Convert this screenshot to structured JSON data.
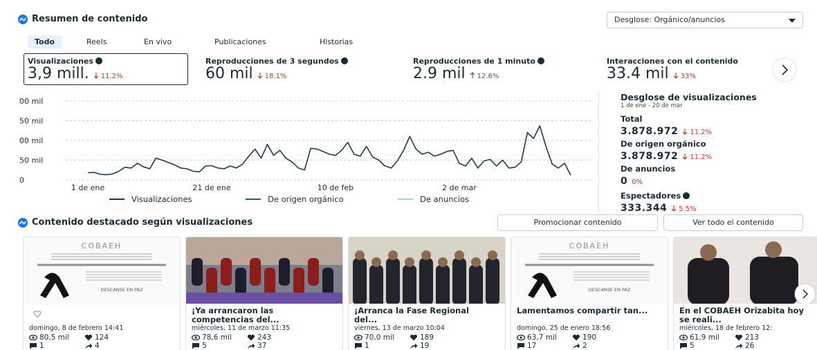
{
  "header": {
    "title": "Resumen de contenido",
    "breakdown_button": "Desglose: Orgánico/anuncios"
  },
  "tabs": [
    "Todo",
    "Reels",
    "En vivo",
    "Publicaciones",
    "Historias"
  ],
  "metrics": [
    {
      "label": "Visualizaciones",
      "value": "3,9 mill.",
      "change": "11.2%",
      "direction": "down"
    },
    {
      "label": "Reproducciones de 3 segundos",
      "value": "60 mil",
      "change": "18.1%",
      "direction": "down"
    },
    {
      "label": "Reproducciones de 1 minuto",
      "value": "2.9 mil",
      "change": "12.6%",
      "direction": "up"
    },
    {
      "label": "Interacciones con el contenido",
      "value": "33.4 mil",
      "change": "33%",
      "direction": "down"
    }
  ],
  "chart": {
    "type": "line",
    "categories": [
      "1 de ene",
      null,
      null,
      null,
      null,
      null,
      null,
      null,
      null,
      null,
      null,
      null,
      null,
      null,
      null,
      null,
      null,
      null,
      null,
      null,
      "21 de ene",
      null,
      null,
      null,
      null,
      null,
      null,
      null,
      null,
      null,
      null,
      null,
      null,
      null,
      null,
      null,
      null,
      null,
      null,
      null,
      "10 de feb",
      null,
      null,
      null,
      null,
      null,
      null,
      null,
      null,
      null,
      null,
      null,
      null,
      null,
      null,
      null,
      null,
      null,
      null,
      null,
      "2 de mar",
      null,
      null,
      null,
      null,
      null,
      null,
      null,
      null,
      null,
      null,
      null,
      null,
      null,
      null,
      null,
      null,
      null,
      null
    ],
    "series": [
      {
        "name": "Visualizaciones",
        "color": "#1f3a4d",
        "values": [
          18,
          19,
          14,
          13,
          15,
          22,
          32,
          30,
          42,
          33,
          28,
          55,
          50,
          44,
          38,
          30,
          28,
          22,
          20,
          35,
          36,
          30,
          28,
          35,
          30,
          40,
          60,
          78,
          55,
          90,
          62,
          75,
          55,
          45,
          30,
          25,
          80,
          78,
          72,
          65,
          62,
          75,
          95,
          65,
          60,
          85,
          58,
          50,
          35,
          30,
          48,
          75,
          110,
          78,
          65,
          70,
          60,
          65,
          72,
          75,
          42,
          35,
          55,
          30,
          48,
          52,
          35,
          50,
          30,
          32,
          45,
          120,
          105,
          137,
          85,
          40,
          30,
          42,
          12
        ]
      },
      {
        "name": "De origen orgánico",
        "color": "#2e5f7e"
      },
      {
        "name": "De anuncios",
        "color": "#a3d5ea"
      }
    ],
    "ylim": [
      0,
      200
    ],
    "yticks": [
      0,
      {
        "value": 50,
        "label": "50 mil"
      },
      {
        "value": 100,
        "label": "00 mil"
      },
      {
        "value": 150,
        "label": "50 mil"
      },
      {
        "value": 200,
        "label": "00 mil"
      }
    ],
    "grid": true
  },
  "breakdown": {
    "title": "Desglose de visualizaciones",
    "date_range": "1 de ene - 20 de mar",
    "items": [
      {
        "label": "Total",
        "value": "3.878.972",
        "change": "11.2%",
        "direction": "down"
      },
      {
        "label": "De origen orgánico",
        "value": "3.878.972",
        "change": "11.2%",
        "direction": "down"
      },
      {
        "label": "De anuncios",
        "value": "0",
        "change": "0%"
      },
      {
        "label": "Espectadores",
        "value": "333.344",
        "change": "5.5%",
        "direction": "down"
      }
    ]
  },
  "featured": {
    "title": "Contenido destacado según visualizaciones",
    "buttons": [
      "Promocionar contenido",
      "Ver todo el contenido"
    ],
    "cards": [
      {
        "image": "memorial",
        "image_text": [
          "COBAEH",
          "DESCANSE EN PAZ"
        ],
        "date": "domingo, 8 de febrero 14:41",
        "views": "80,5 mil",
        "likes": "124",
        "comments": "1",
        "shares": "4"
      },
      {
        "image": "team",
        "caption": "¡Ya arrancaron las competencias del...",
        "date": "miércoles, 11 de marzo 11:35",
        "views": "78,6 mil",
        "likes": "243",
        "comments": "5",
        "shares": "37"
      },
      {
        "image": "group",
        "caption": "¡Arranca la Fase Regional del...",
        "date": "viernes, 13 de marzo 10:04",
        "views": "70,0 mil",
        "likes": "189",
        "comments": "1",
        "shares": "19"
      },
      {
        "image": "memorial",
        "image_text": [
          "COBAEH",
          "DESCANSE EN PAZ"
        ],
        "caption": "Lamentamos compartir tan...",
        "date": "domingo, 25 de enero 18:56",
        "views": "63,7 mil",
        "likes": "190",
        "comments": "17",
        "shares": "2"
      },
      {
        "image": "pair",
        "caption": "En el COBAEH Orizabita hoy se reali...",
        "date": "miércoles, 18 de febrero 12:",
        "views": "61,9 mil",
        "likes": "213",
        "comments": "5",
        "shares": "26"
      }
    ]
  }
}
